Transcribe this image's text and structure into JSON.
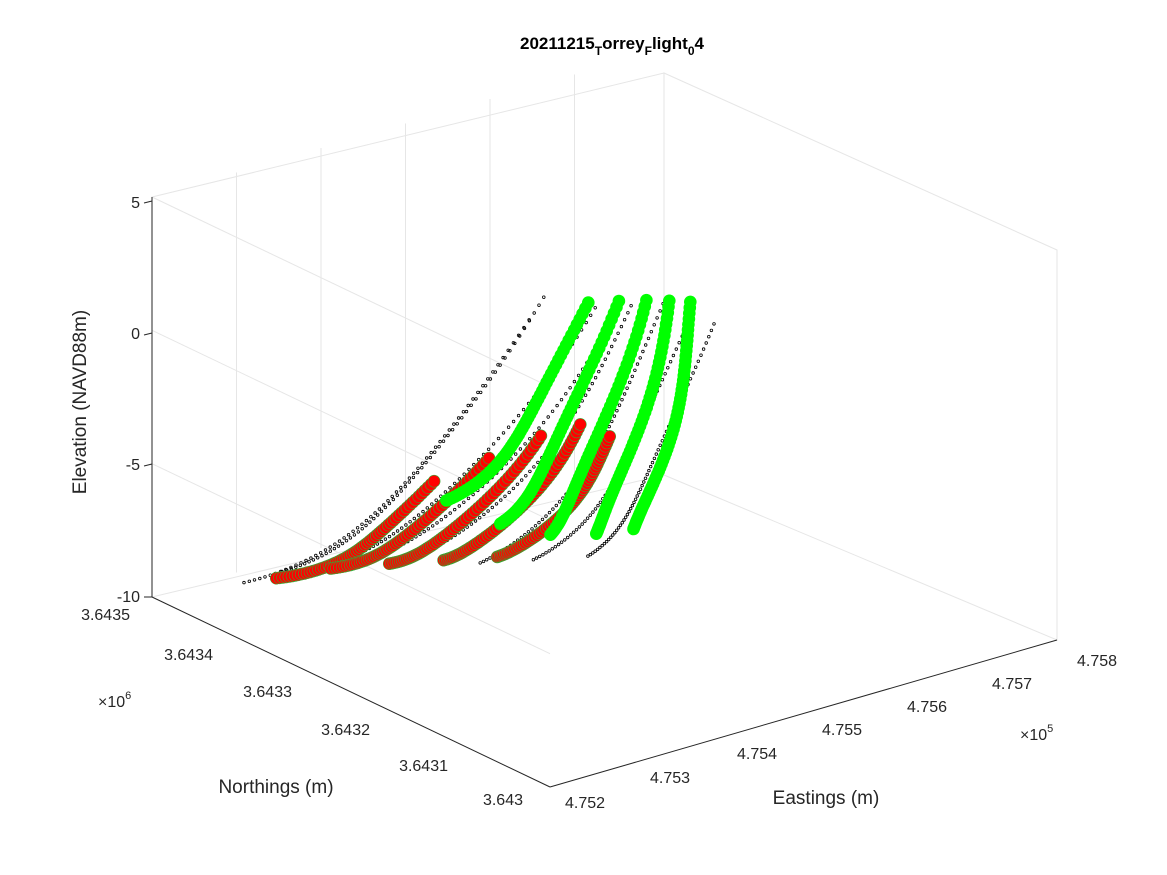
{
  "chart_data": {
    "type": "scatter",
    "title_parts": [
      "20211215",
      "T",
      "orrey",
      "F",
      "light",
      "0",
      "4"
    ],
    "xlabel": "Eastings (m)",
    "ylabel": "Northings (m)",
    "zlabel": "Elevation (NAVD88m)",
    "x_ticks": [
      "4.752",
      "4.753",
      "4.754",
      "4.755",
      "4.756",
      "4.757",
      "4.758"
    ],
    "y_ticks": [
      "3.643",
      "3.6431",
      "3.6432",
      "3.6433",
      "3.6434",
      "3.6435"
    ],
    "z_ticks": [
      "5",
      "0",
      "-5",
      "-10"
    ],
    "x_multiplier": "×10",
    "x_multiplier_exp": "5",
    "y_multiplier": "×10",
    "y_multiplier_exp": "6",
    "xlim": [
      475200,
      475800
    ],
    "ylim": [
      3643000,
      3643500
    ],
    "zlim": [
      -10,
      5
    ],
    "grid": true,
    "series": [
      {
        "kind": "survey_track",
        "color": "#000000",
        "profiles": [
          {
            "x": [
              475290,
              475290
            ],
            "y": [
              3643480,
              3643120
            ],
            "z": [
              -10,
              5
            ]
          },
          {
            "x": [
              475330,
              475330
            ],
            "y": [
              3643480,
              3643150
            ],
            "z": [
              -10,
              5
            ]
          },
          {
            "x": [
              475370,
              475370
            ],
            "y": [
              3643470,
              3643130
            ],
            "z": [
              -10,
              4.5
            ]
          },
          {
            "x": [
              475410,
              475410
            ],
            "y": [
              3643460,
              3643140
            ],
            "z": [
              -10,
              4
            ]
          },
          {
            "x": [
              475450,
              475450
            ],
            "y": [
              3643440,
              3643160
            ],
            "z": [
              -10,
              3.5
            ]
          },
          {
            "x": [
              475500,
              475500
            ],
            "y": [
              3643400,
              3643170
            ],
            "z": [
              -10,
              3
            ]
          },
          {
            "x": [
              475540,
              475540
            ],
            "y": [
              3643380,
              3643180
            ],
            "z": [
              -10,
              2
            ]
          },
          {
            "x": [
              475580,
              475580
            ],
            "y": [
              3643360,
              3643200
            ],
            "z": [
              -10,
              1
            ]
          }
        ]
      },
      {
        "kind": "bathymetry_red",
        "color": "#ff0000",
        "profiles": [
          {
            "x": [
              475300,
              475300
            ],
            "y": [
              3643450,
              3643250
            ],
            "z": [
              -9.5,
              -3
            ]
          },
          {
            "x": [
              475350,
              475350
            ],
            "y": [
              3643440,
              3643240
            ],
            "z": [
              -9.5,
              -2.5
            ]
          },
          {
            "x": [
              475400,
              475400
            ],
            "y": [
              3643420,
              3643230
            ],
            "z": [
              -9.5,
              -2
            ]
          },
          {
            "x": [
              475450,
              475450
            ],
            "y": [
              3643400,
              3643230
            ],
            "z": [
              -9.5,
              -2
            ]
          },
          {
            "x": [
              475500,
              475500
            ],
            "y": [
              3643380,
              3643240
            ],
            "z": [
              -9.5,
              -3
            ]
          }
        ]
      },
      {
        "kind": "topography_green",
        "color": "#00ff00",
        "profiles": [
          {
            "x": [
              475360,
              475360
            ],
            "y": [
              3643300,
              3643120
            ],
            "z": [
              -5,
              5
            ]
          },
          {
            "x": [
              475400,
              475400
            ],
            "y": [
              3643280,
              3643130
            ],
            "z": [
              -6,
              4.5
            ]
          },
          {
            "x": [
              475440,
              475440
            ],
            "y": [
              3643260,
              3643140
            ],
            "z": [
              -6.5,
              4
            ]
          },
          {
            "x": [
              475480,
              475480
            ],
            "y": [
              3643240,
              3643150
            ],
            "z": [
              -6.5,
              3.5
            ]
          },
          {
            "x": [
              475520,
              475520
            ],
            "y": [
              3643230,
              3643160
            ],
            "z": [
              -6.5,
              3
            ]
          }
        ]
      }
    ]
  }
}
